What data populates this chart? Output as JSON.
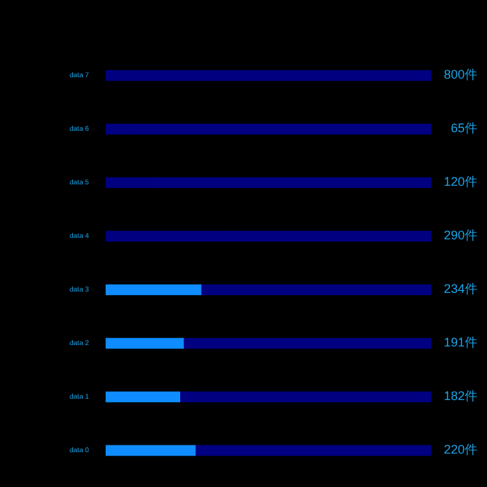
{
  "chart_data": {
    "type": "bar",
    "orientation": "horizontal",
    "stacked": true,
    "categories": [
      "data 7",
      "data 6",
      "data 5",
      "data 4",
      "data 3",
      "data 2",
      "data 1",
      "data 0"
    ],
    "series": [
      {
        "colors": [
          "#000080",
          "#000080",
          "#000080",
          "#000080",
          "#0f8cff",
          "#0f8cff",
          "#0f8cff",
          "#0f8cff"
        ],
        "values": [
          800,
          65,
          120,
          290,
          234,
          191,
          182,
          220
        ],
        "value_labels": [
          "800件",
          "65件",
          "120件",
          "290件",
          "234件",
          "191件",
          "182件",
          "220件"
        ]
      },
      {
        "color": "#000080",
        "values": [
          0,
          735,
          680,
          510,
          566,
          609,
          618,
          580
        ]
      }
    ],
    "xlim": [
      0,
      800
    ],
    "tick_labels": "y",
    "legend": false
  }
}
